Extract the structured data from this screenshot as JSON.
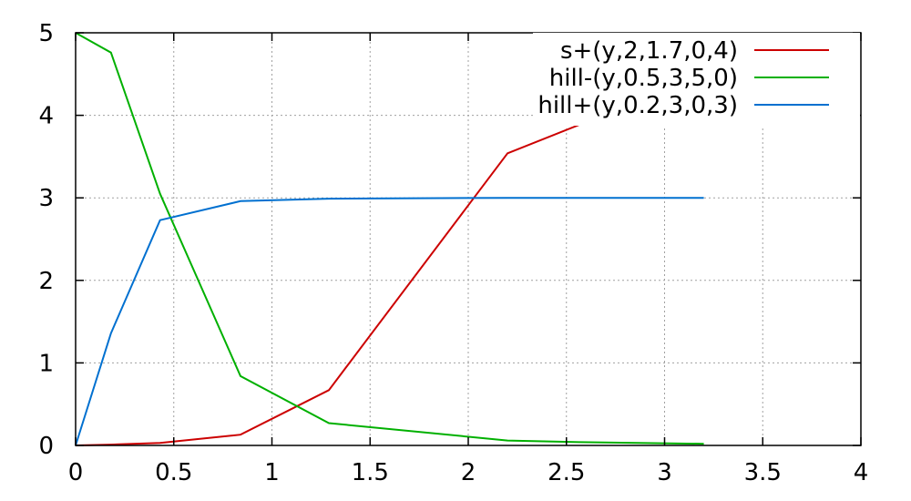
{
  "chart_data": {
    "type": "line",
    "title": "",
    "xlabel": "",
    "ylabel": "",
    "xlim": [
      0,
      4
    ],
    "ylim": [
      0,
      5
    ],
    "grid": true,
    "legend_position": "top-right",
    "x_ticks": [
      "0",
      "0.5",
      "1",
      "1.5",
      "2",
      "2.5",
      "3",
      "3.5",
      "4"
    ],
    "y_ticks": [
      "0",
      "1",
      "2",
      "3",
      "4",
      "5"
    ],
    "x_tick_values": [
      0,
      0.5,
      1,
      1.5,
      2,
      2.5,
      3,
      3.5,
      4
    ],
    "y_tick_values": [
      0,
      1,
      2,
      3,
      4,
      5
    ],
    "series": [
      {
        "name": "s+(y,2,1.7,0,4)",
        "color": "#cc0000",
        "x": [
          0,
          0.18,
          0.43,
          0.84,
          1.29,
          2.2,
          2.57,
          3.2
        ],
        "y": [
          0,
          0.01,
          0.03,
          0.13,
          0.67,
          3.54,
          3.89,
          4.0
        ]
      },
      {
        "name": "hill-(y,0.5,3,5,0)",
        "color": "#00b000",
        "x": [
          0,
          0.18,
          0.43,
          0.84,
          1.29,
          2.2,
          2.57,
          3.2
        ],
        "y": [
          5.0,
          4.76,
          3.05,
          0.84,
          0.27,
          0.06,
          0.04,
          0.02
        ]
      },
      {
        "name": "hill+(y,0.2,3,0,3)",
        "color": "#0070d0",
        "x": [
          0,
          0.18,
          0.43,
          0.84,
          1.29,
          2.2,
          2.57,
          3.2
        ],
        "y": [
          0,
          1.36,
          2.73,
          2.96,
          2.99,
          3.0,
          3.0,
          3.0
        ]
      }
    ]
  }
}
